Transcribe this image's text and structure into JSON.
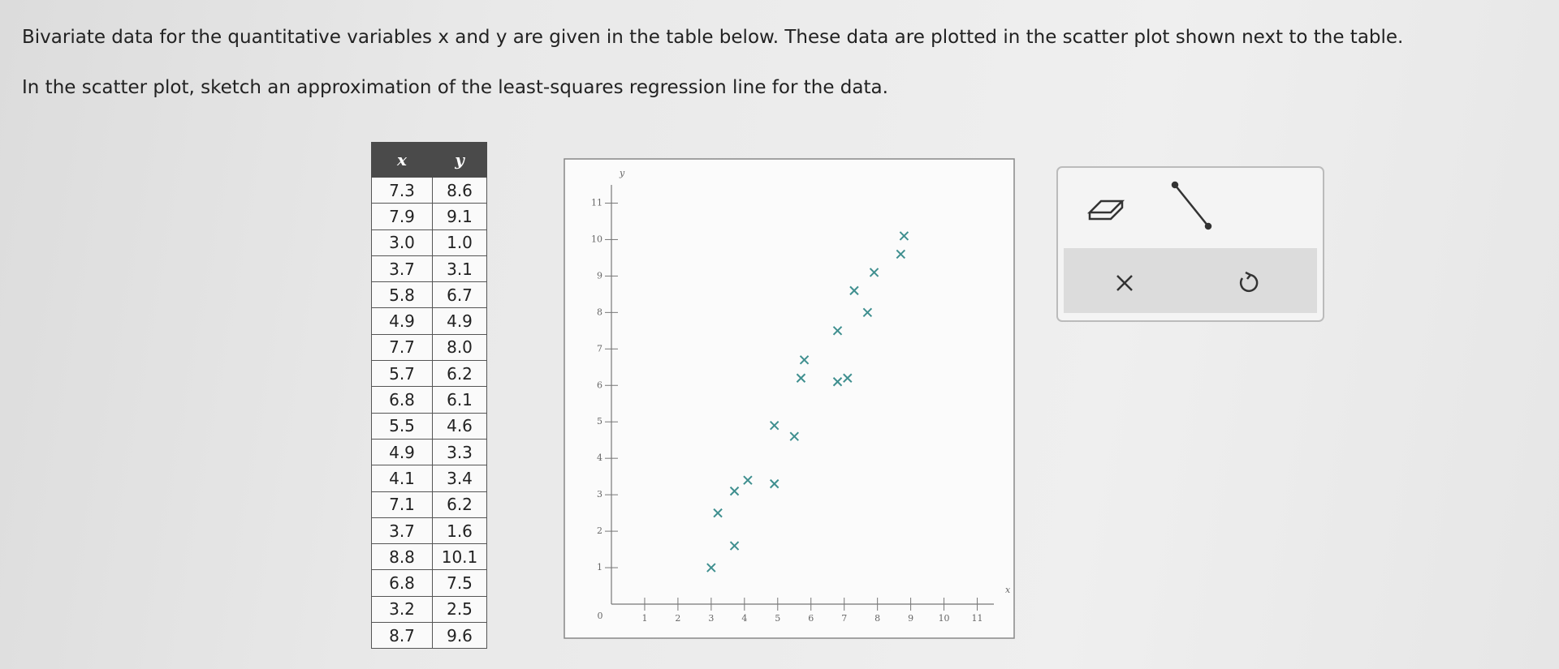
{
  "question": {
    "line1": "Bivariate data for the quantitative variables x and y are given in the table below. These data are plotted in the scatter plot shown next to the table.",
    "line2": "In the scatter plot, sketch an approximation of the least-squares regression line for the data."
  },
  "table": {
    "headers": [
      "x",
      "y"
    ],
    "rows": [
      [
        "7.3",
        "8.6"
      ],
      [
        "7.9",
        "9.1"
      ],
      [
        "3.0",
        "1.0"
      ],
      [
        "3.7",
        "3.1"
      ],
      [
        "5.8",
        "6.7"
      ],
      [
        "4.9",
        "4.9"
      ],
      [
        "7.7",
        "8.0"
      ],
      [
        "5.7",
        "6.2"
      ],
      [
        "6.8",
        "6.1"
      ],
      [
        "5.5",
        "4.6"
      ],
      [
        "4.9",
        "3.3"
      ],
      [
        "4.1",
        "3.4"
      ],
      [
        "7.1",
        "6.2"
      ],
      [
        "3.7",
        "1.6"
      ],
      [
        "8.8",
        "10.1"
      ],
      [
        "6.8",
        "7.5"
      ],
      [
        "3.2",
        "2.5"
      ],
      [
        "8.7",
        "9.6"
      ]
    ]
  },
  "scatter": {
    "type": "scatter",
    "x_label": "x",
    "y_label": "y",
    "origin_label": "0",
    "x": [
      7.3,
      7.9,
      3.0,
      3.7,
      5.8,
      4.9,
      7.7,
      5.7,
      6.8,
      5.5,
      4.9,
      4.1,
      7.1,
      3.7,
      8.8,
      6.8,
      3.2,
      8.7
    ],
    "y": [
      8.6,
      9.1,
      1.0,
      3.1,
      6.7,
      4.9,
      8.0,
      6.2,
      6.1,
      4.6,
      3.3,
      3.4,
      6.2,
      1.6,
      10.1,
      7.5,
      2.5,
      9.6
    ],
    "color": "#3f8f8f",
    "xlim": [
      0,
      11.5
    ],
    "ylim": [
      0,
      11.5
    ],
    "xticks": [
      1,
      2,
      3,
      4,
      5,
      6,
      7,
      8,
      9,
      10,
      11
    ],
    "yticks": [
      1,
      2,
      3,
      4,
      5,
      6,
      7,
      8,
      9,
      10,
      11
    ]
  }
}
